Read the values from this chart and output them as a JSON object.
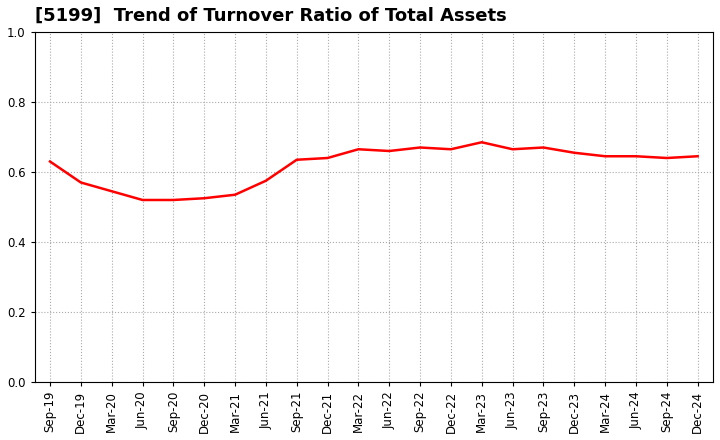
{
  "title": "[5199]  Trend of Turnover Ratio of Total Assets",
  "labels": [
    "Sep-19",
    "Dec-19",
    "Mar-20",
    "Jun-20",
    "Sep-20",
    "Dec-20",
    "Mar-21",
    "Jun-21",
    "Sep-21",
    "Dec-21",
    "Mar-22",
    "Jun-22",
    "Sep-22",
    "Dec-22",
    "Mar-23",
    "Jun-23",
    "Sep-23",
    "Dec-23",
    "Mar-24",
    "Jun-24",
    "Sep-24",
    "Dec-24"
  ],
  "values": [
    0.63,
    0.57,
    0.545,
    0.52,
    0.52,
    0.525,
    0.535,
    0.575,
    0.635,
    0.64,
    0.665,
    0.66,
    0.67,
    0.665,
    0.685,
    0.665,
    0.67,
    0.655,
    0.645,
    0.645,
    0.64,
    0.645
  ],
  "line_color": "#FF0000",
  "line_width": 1.8,
  "ylim": [
    0.0,
    1.0
  ],
  "yticks": [
    0.0,
    0.2,
    0.4,
    0.6,
    0.8,
    1.0
  ],
  "background_color": "#ffffff",
  "grid_color": "#aaaaaa",
  "title_fontsize": 13,
  "tick_fontsize": 8.5
}
